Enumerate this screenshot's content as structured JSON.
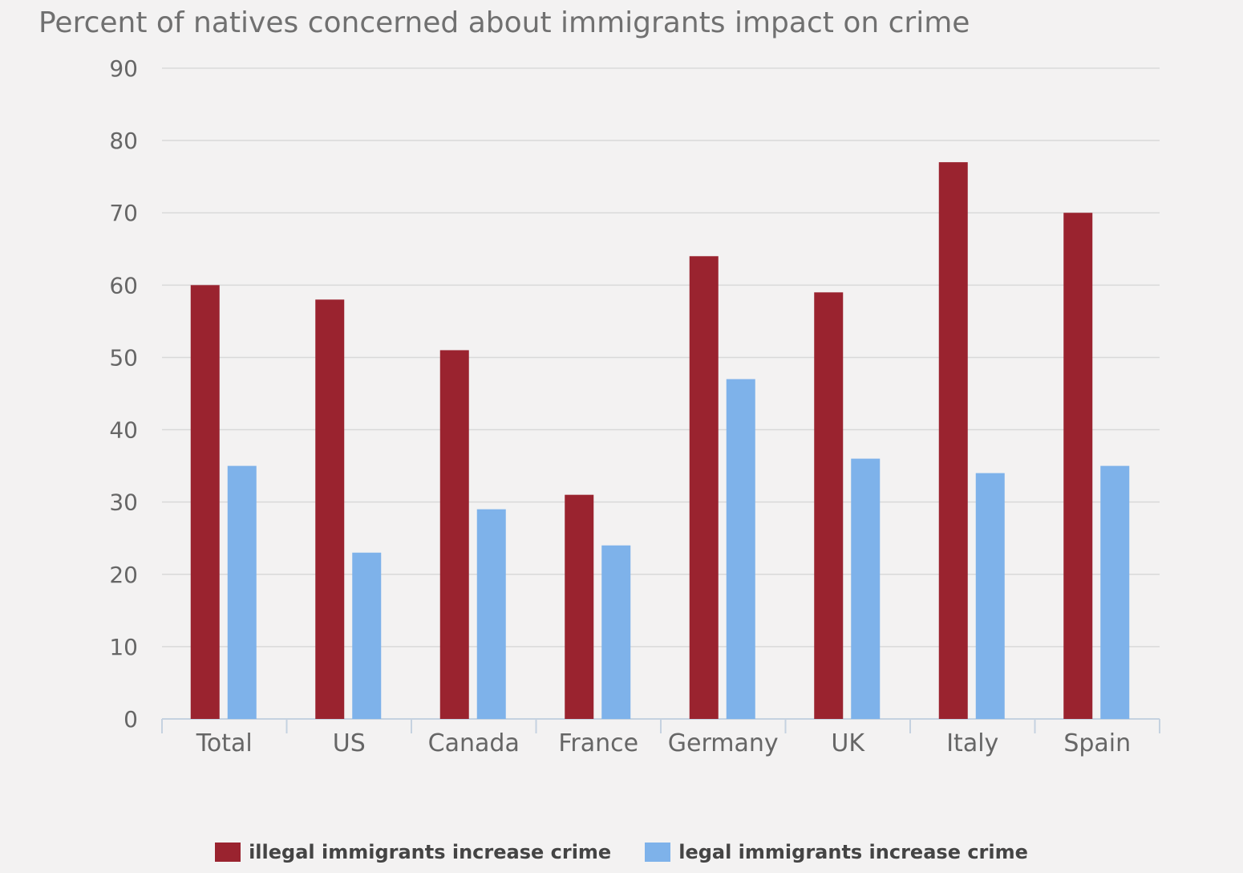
{
  "chart_data": {
    "type": "bar",
    "title": "Percent of natives concerned about immigrants impact on crime",
    "xlabel": "",
    "ylabel": "",
    "ylim": [
      0,
      90
    ],
    "yticks": [
      "0",
      "10",
      "20",
      "30",
      "40",
      "50",
      "60",
      "70",
      "80",
      "90"
    ],
    "grid": true,
    "legend_position": "bottom",
    "categories": [
      "Total",
      "US",
      "Canada",
      "France",
      "Germany",
      "UK",
      "Italy",
      "Spain"
    ],
    "series": [
      {
        "name": "illegal immigrants increase crime",
        "color": "#9a232f",
        "values": [
          60,
          58,
          51,
          31,
          64,
          59,
          77,
          70
        ]
      },
      {
        "name": "legal immigrants increase crime",
        "color": "#7eb2ea",
        "values": [
          35,
          23,
          29,
          24,
          47,
          36,
          34,
          35
        ]
      }
    ]
  }
}
